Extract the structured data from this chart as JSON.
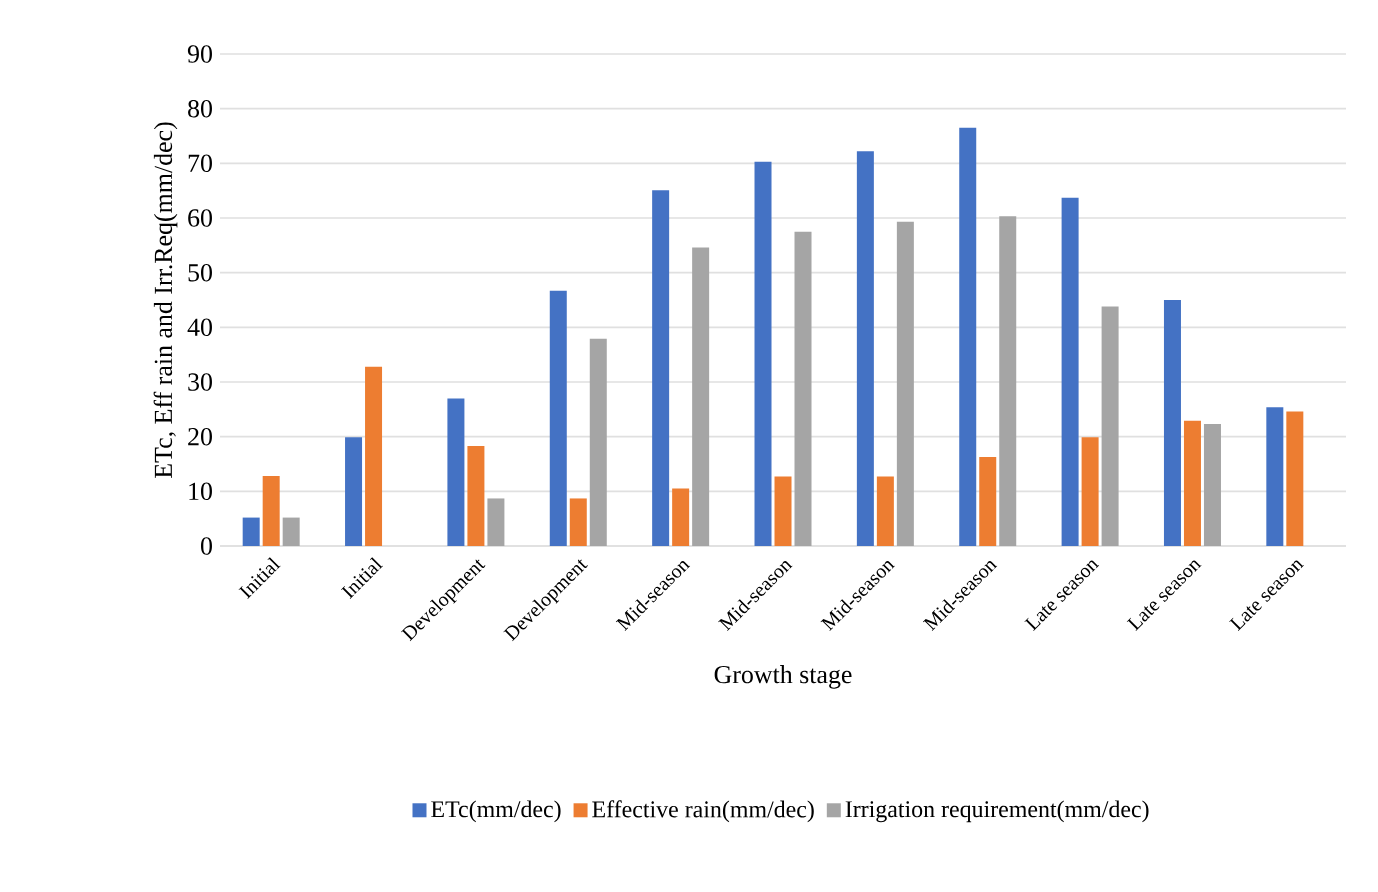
{
  "chart_data": {
    "type": "bar",
    "xlabel": "Growth stage",
    "ylabel": "ETc, Eff rain and Irr.Req(mm/dec)",
    "categories": [
      "Initial",
      "Initial",
      "Development",
      "Development",
      "Mid-season",
      "Mid-season",
      "Mid-season",
      "Mid-season",
      "Late season",
      "Late season",
      "Late season"
    ],
    "series": [
      {
        "name": "ETc(mm/dec)",
        "color": "#4472c4",
        "values": [
          5.2,
          19.9,
          27,
          46.7,
          65.1,
          70.3,
          72.2,
          76.5,
          63.7,
          45,
          25.4
        ]
      },
      {
        "name": "Effective rain(mm/dec)",
        "color": "#ed7d31",
        "values": [
          12.8,
          32.8,
          18.3,
          8.7,
          10.5,
          12.7,
          12.7,
          16.3,
          19.9,
          22.9,
          24.6
        ]
      },
      {
        "name": "Irrigation requirement(mm/dec)",
        "color": "#a5a5a5",
        "values": [
          5.2,
          0,
          8.7,
          37.9,
          54.6,
          57.5,
          59.3,
          60.3,
          43.8,
          22.3,
          0
        ]
      }
    ],
    "ylim": [
      0,
      90
    ],
    "yticks": [
      0,
      10,
      20,
      30,
      40,
      50,
      60,
      70,
      80,
      90
    ],
    "grid": "y",
    "legend": "bottom"
  }
}
